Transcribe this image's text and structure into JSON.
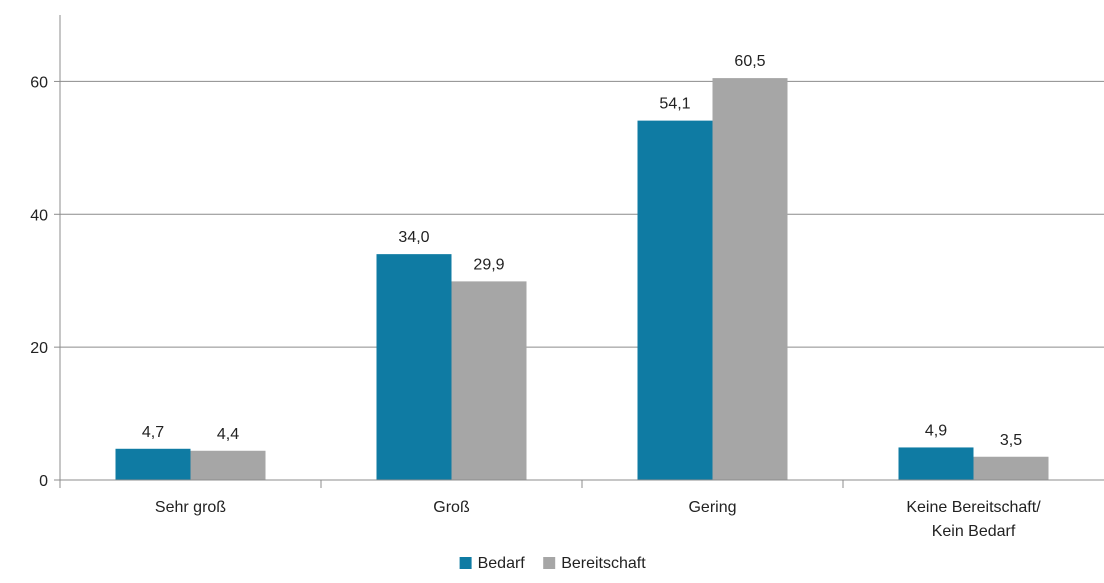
{
  "chart_data": {
    "type": "bar",
    "categories": [
      [
        "Sehr groß"
      ],
      [
        "Groß"
      ],
      [
        "Gering"
      ],
      [
        "Keine Bereitschaft/",
        "Kein Bedarf"
      ]
    ],
    "series": [
      {
        "name": "Bedarf",
        "color": "#0f7ba3",
        "values": [
          4.7,
          34.0,
          54.1,
          4.9
        ],
        "labels": [
          "4,7",
          "34,0",
          "54,1",
          "4,9"
        ]
      },
      {
        "name": "Bereitschaft",
        "color": "#a6a6a6",
        "values": [
          4.4,
          29.9,
          60.5,
          3.5
        ],
        "labels": [
          "4,4",
          "29,9",
          "60,5",
          "3,5"
        ]
      }
    ],
    "yticks": [
      0,
      20,
      40,
      60
    ],
    "ylim": [
      0,
      70
    ],
    "grid": true,
    "legend_position": "bottom-center"
  }
}
